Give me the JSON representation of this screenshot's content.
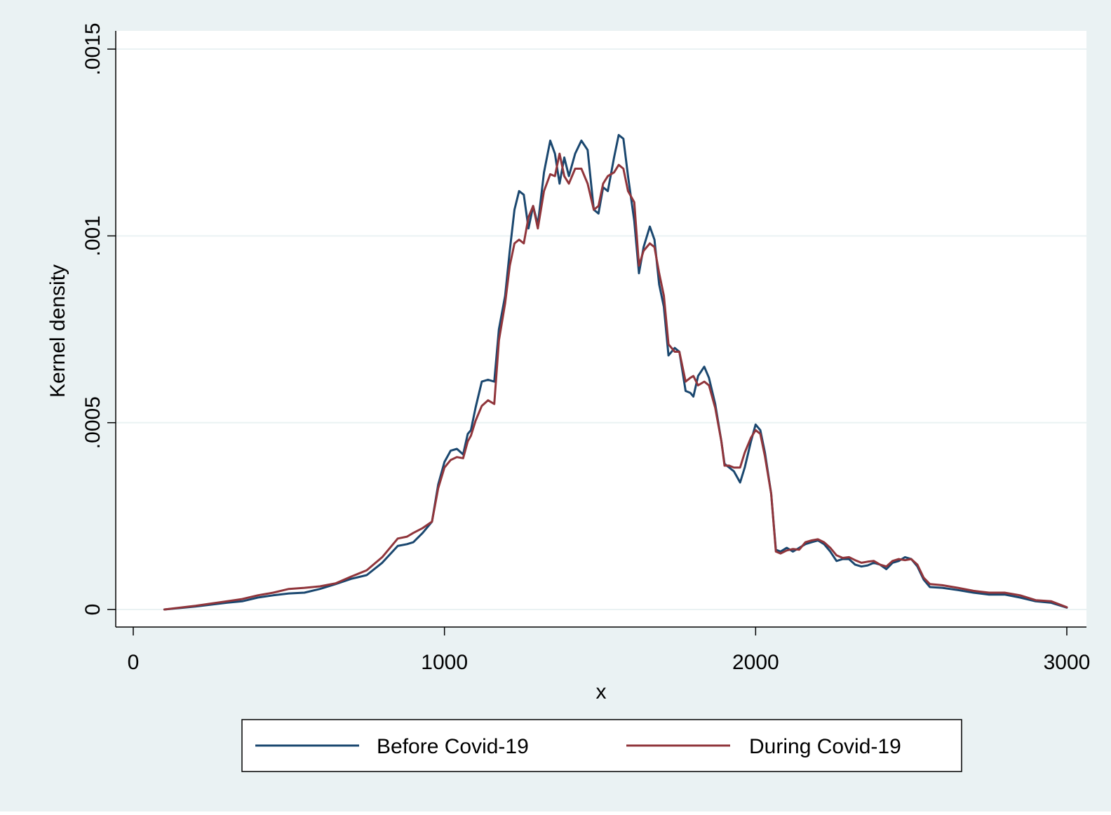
{
  "chart_data": {
    "type": "line",
    "title": "",
    "xlabel": "x",
    "ylabel": "Kernel density",
    "xlim": [
      0,
      3000
    ],
    "ylim": [
      0,
      0.0015
    ],
    "x_ticks": [
      {
        "value": 0,
        "label": "0"
      },
      {
        "value": 1000,
        "label": "1000"
      },
      {
        "value": 2000,
        "label": "2000"
      },
      {
        "value": 3000,
        "label": "3000"
      }
    ],
    "y_ticks": [
      {
        "value": 0,
        "label": "0"
      },
      {
        "value": 0.0005,
        "label": ".0005"
      },
      {
        "value": 0.001,
        "label": ".001"
      },
      {
        "value": 0.0015,
        "label": ".0015"
      }
    ],
    "grid": "horizontal",
    "legend_position": "bottom",
    "series": [
      {
        "name": "Before Covid-19",
        "color": "#1a476f",
        "points": [
          [
            100,
            0.0
          ],
          [
            200,
            8e-06
          ],
          [
            300,
            1.8e-05
          ],
          [
            350,
            2.2e-05
          ],
          [
            400,
            3.2e-05
          ],
          [
            450,
            3.8e-05
          ],
          [
            500,
            4.3e-05
          ],
          [
            550,
            4.5e-05
          ],
          [
            600,
            5.5e-05
          ],
          [
            650,
            6.8e-05
          ],
          [
            700,
            8.2e-05
          ],
          [
            750,
            9.2e-05
          ],
          [
            800,
            0.000125
          ],
          [
            850,
            0.00017
          ],
          [
            880,
            0.000175
          ],
          [
            900,
            0.00018
          ],
          [
            930,
            0.000205
          ],
          [
            960,
            0.000235
          ],
          [
            980,
            0.000335
          ],
          [
            1000,
            0.000395
          ],
          [
            1020,
            0.000425
          ],
          [
            1040,
            0.00043
          ],
          [
            1060,
            0.000415
          ],
          [
            1075,
            0.00047
          ],
          [
            1085,
            0.00048
          ],
          [
            1100,
            0.00054
          ],
          [
            1120,
            0.00061
          ],
          [
            1140,
            0.000615
          ],
          [
            1160,
            0.00061
          ],
          [
            1175,
            0.00075
          ],
          [
            1195,
            0.00084
          ],
          [
            1210,
            0.00096
          ],
          [
            1225,
            0.00107
          ],
          [
            1240,
            0.00112
          ],
          [
            1255,
            0.00111
          ],
          [
            1270,
            0.00102
          ],
          [
            1285,
            0.00108
          ],
          [
            1300,
            0.00103
          ],
          [
            1320,
            0.00117
          ],
          [
            1340,
            0.001255
          ],
          [
            1355,
            0.00122
          ],
          [
            1370,
            0.00114
          ],
          [
            1385,
            0.00121
          ],
          [
            1400,
            0.00116
          ],
          [
            1420,
            0.00122
          ],
          [
            1440,
            0.001255
          ],
          [
            1460,
            0.00123
          ],
          [
            1480,
            0.00107
          ],
          [
            1495,
            0.00106
          ],
          [
            1510,
            0.00113
          ],
          [
            1525,
            0.00112
          ],
          [
            1545,
            0.00121
          ],
          [
            1560,
            0.00127
          ],
          [
            1575,
            0.00126
          ],
          [
            1590,
            0.00116
          ],
          [
            1610,
            0.00104
          ],
          [
            1625,
            0.0009
          ],
          [
            1640,
            0.00097
          ],
          [
            1660,
            0.001025
          ],
          [
            1675,
            0.00099
          ],
          [
            1690,
            0.00087
          ],
          [
            1705,
            0.00081
          ],
          [
            1720,
            0.00068
          ],
          [
            1740,
            0.0007
          ],
          [
            1755,
            0.00069
          ],
          [
            1775,
            0.000585
          ],
          [
            1790,
            0.00058
          ],
          [
            1800,
            0.00057
          ],
          [
            1815,
            0.000625
          ],
          [
            1835,
            0.00065
          ],
          [
            1850,
            0.00062
          ],
          [
            1870,
            0.00055
          ],
          [
            1890,
            0.00045
          ],
          [
            1900,
            0.00039
          ],
          [
            1915,
            0.00038
          ],
          [
            1930,
            0.00037
          ],
          [
            1950,
            0.00034
          ],
          [
            1965,
            0.00038
          ],
          [
            1985,
            0.00045
          ],
          [
            2000,
            0.000495
          ],
          [
            2015,
            0.00048
          ],
          [
            2030,
            0.00042
          ],
          [
            2050,
            0.00031
          ],
          [
            2065,
            0.00016
          ],
          [
            2080,
            0.000155
          ],
          [
            2100,
            0.000165
          ],
          [
            2120,
            0.000155
          ],
          [
            2140,
            0.000165
          ],
          [
            2160,
            0.000175
          ],
          [
            2180,
            0.00018
          ],
          [
            2200,
            0.000185
          ],
          [
            2220,
            0.000175
          ],
          [
            2240,
            0.000155
          ],
          [
            2260,
            0.00013
          ],
          [
            2280,
            0.000135
          ],
          [
            2300,
            0.000135
          ],
          [
            2320,
            0.00012
          ],
          [
            2340,
            0.000115
          ],
          [
            2360,
            0.000118
          ],
          [
            2380,
            0.000125
          ],
          [
            2400,
            0.00012
          ],
          [
            2420,
            0.000108
          ],
          [
            2440,
            0.000125
          ],
          [
            2460,
            0.00013
          ],
          [
            2480,
            0.00014
          ],
          [
            2500,
            0.000135
          ],
          [
            2520,
            0.000115
          ],
          [
            2540,
            8e-05
          ],
          [
            2560,
            6e-05
          ],
          [
            2600,
            5.8e-05
          ],
          [
            2650,
            5.2e-05
          ],
          [
            2700,
            4.5e-05
          ],
          [
            2750,
            4e-05
          ],
          [
            2800,
            4e-05
          ],
          [
            2850,
            3.2e-05
          ],
          [
            2900,
            2.2e-05
          ],
          [
            2950,
            1.8e-05
          ],
          [
            3000,
            5e-06
          ]
        ]
      },
      {
        "name": "During Covid-19",
        "color": "#90353b",
        "points": [
          [
            100,
            0.0
          ],
          [
            200,
            1e-05
          ],
          [
            300,
            2.2e-05
          ],
          [
            350,
            2.8e-05
          ],
          [
            400,
            3.8e-05
          ],
          [
            450,
            4.5e-05
          ],
          [
            500,
            5.5e-05
          ],
          [
            550,
            5.8e-05
          ],
          [
            600,
            6.2e-05
          ],
          [
            650,
            7e-05
          ],
          [
            700,
            8.8e-05
          ],
          [
            750,
            0.000105
          ],
          [
            800,
            0.00014
          ],
          [
            850,
            0.00019
          ],
          [
            880,
            0.000195
          ],
          [
            900,
            0.000205
          ],
          [
            930,
            0.000218
          ],
          [
            960,
            0.000235
          ],
          [
            980,
            0.000325
          ],
          [
            1000,
            0.00038
          ],
          [
            1020,
            0.0004
          ],
          [
            1040,
            0.000408
          ],
          [
            1060,
            0.000405
          ],
          [
            1075,
            0.00045
          ],
          [
            1085,
            0.000465
          ],
          [
            1100,
            0.000505
          ],
          [
            1120,
            0.000545
          ],
          [
            1140,
            0.00056
          ],
          [
            1160,
            0.00055
          ],
          [
            1175,
            0.00072
          ],
          [
            1195,
            0.00082
          ],
          [
            1210,
            0.00092
          ],
          [
            1225,
            0.00098
          ],
          [
            1240,
            0.00099
          ],
          [
            1255,
            0.00098
          ],
          [
            1270,
            0.00105
          ],
          [
            1285,
            0.00108
          ],
          [
            1300,
            0.00102
          ],
          [
            1320,
            0.00112
          ],
          [
            1340,
            0.001165
          ],
          [
            1355,
            0.00116
          ],
          [
            1370,
            0.00122
          ],
          [
            1385,
            0.00116
          ],
          [
            1400,
            0.00114
          ],
          [
            1420,
            0.00118
          ],
          [
            1440,
            0.00118
          ],
          [
            1460,
            0.00114
          ],
          [
            1480,
            0.00107
          ],
          [
            1495,
            0.00108
          ],
          [
            1510,
            0.00114
          ],
          [
            1525,
            0.00116
          ],
          [
            1545,
            0.00117
          ],
          [
            1560,
            0.00119
          ],
          [
            1575,
            0.00118
          ],
          [
            1590,
            0.00112
          ],
          [
            1610,
            0.00109
          ],
          [
            1625,
            0.00092
          ],
          [
            1640,
            0.00096
          ],
          [
            1660,
            0.00098
          ],
          [
            1675,
            0.00097
          ],
          [
            1690,
            0.0009
          ],
          [
            1705,
            0.00084
          ],
          [
            1720,
            0.00071
          ],
          [
            1740,
            0.00069
          ],
          [
            1755,
            0.00069
          ],
          [
            1775,
            0.00061
          ],
          [
            1790,
            0.00062
          ],
          [
            1800,
            0.000625
          ],
          [
            1815,
            0.0006
          ],
          [
            1835,
            0.00061
          ],
          [
            1850,
            0.0006
          ],
          [
            1870,
            0.00054
          ],
          [
            1890,
            0.00045
          ],
          [
            1900,
            0.000385
          ],
          [
            1915,
            0.000385
          ],
          [
            1930,
            0.00038
          ],
          [
            1950,
            0.00038
          ],
          [
            1965,
            0.00042
          ],
          [
            1985,
            0.00046
          ],
          [
            2000,
            0.00048
          ],
          [
            2015,
            0.00047
          ],
          [
            2030,
            0.00041
          ],
          [
            2050,
            0.00031
          ],
          [
            2065,
            0.000155
          ],
          [
            2080,
            0.00015
          ],
          [
            2100,
            0.000158
          ],
          [
            2120,
            0.000162
          ],
          [
            2140,
            0.00016
          ],
          [
            2160,
            0.00018
          ],
          [
            2180,
            0.000185
          ],
          [
            2200,
            0.000188
          ],
          [
            2220,
            0.00018
          ],
          [
            2240,
            0.000165
          ],
          [
            2260,
            0.000145
          ],
          [
            2280,
            0.000138
          ],
          [
            2300,
            0.00014
          ],
          [
            2320,
            0.000132
          ],
          [
            2340,
            0.000125
          ],
          [
            2360,
            0.000128
          ],
          [
            2380,
            0.00013
          ],
          [
            2400,
            0.00012
          ],
          [
            2420,
            0.000115
          ],
          [
            2440,
            0.00013
          ],
          [
            2460,
            0.000135
          ],
          [
            2480,
            0.000132
          ],
          [
            2500,
            0.000135
          ],
          [
            2520,
            0.00012
          ],
          [
            2540,
            8.5e-05
          ],
          [
            2560,
            6.8e-05
          ],
          [
            2600,
            6.5e-05
          ],
          [
            2650,
            5.8e-05
          ],
          [
            2700,
            5e-05
          ],
          [
            2750,
            4.5e-05
          ],
          [
            2800,
            4.5e-05
          ],
          [
            2850,
            3.8e-05
          ],
          [
            2900,
            2.5e-05
          ],
          [
            2950,
            2.2e-05
          ],
          [
            3000,
            6e-06
          ]
        ]
      }
    ]
  }
}
